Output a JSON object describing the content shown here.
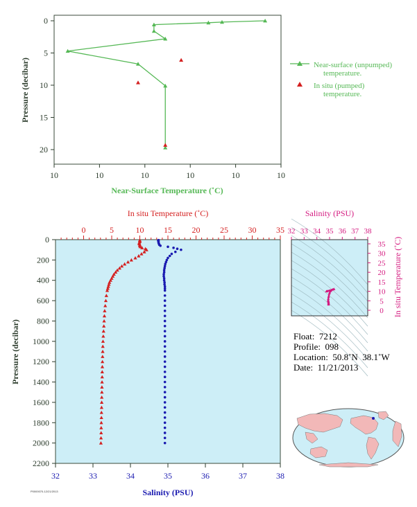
{
  "chart_data": [
    {
      "type": "line",
      "title": "",
      "xlabel": "Near-Surface Temperature (˚C)",
      "ylabel": "Pressure (decibar)",
      "x_tick_labels": [
        "10",
        "10",
        "10",
        "10",
        "10",
        "10"
      ],
      "y_tick_labels": [
        "0",
        "5",
        "10",
        "15",
        "20"
      ],
      "xlim_note": "x axis ticks all printed as 10",
      "ylim": [
        0,
        22
      ],
      "x_domain": [
        0,
        1
      ],
      "series": [
        {
          "name": "Near-surface (unpumped) temperature.",
          "marker": "triangle",
          "color": "#55b855",
          "points": [
            [
              0.93,
              0.0
            ],
            [
              0.74,
              0.2
            ],
            [
              0.68,
              0.3
            ],
            [
              0.44,
              0.6
            ],
            [
              0.44,
              1.6
            ],
            [
              0.49,
              2.8
            ],
            [
              0.06,
              4.7
            ],
            [
              0.37,
              6.7
            ],
            [
              0.49,
              10.1
            ],
            [
              0.49,
              19.7
            ]
          ]
        },
        {
          "name": "In situ (pumped) temperature.",
          "marker": "triangle",
          "color": "#d42020",
          "points": [
            [
              0.56,
              6.1
            ],
            [
              0.37,
              9.6
            ],
            [
              0.49,
              19.3
            ]
          ]
        }
      ],
      "legend_position": "right"
    },
    {
      "type": "scatter",
      "ylabel": "Pressure (decibar)",
      "ylim": [
        0,
        2200
      ],
      "y_ticks": [
        0,
        200,
        400,
        600,
        800,
        1000,
        1200,
        1400,
        1600,
        1800,
        2000,
        2200
      ],
      "temperature_axis": {
        "label": "In situ Temperature (˚C)",
        "lim": [
          -5,
          35
        ],
        "ticks": [
          0,
          5,
          10,
          15,
          20,
          25,
          30,
          35
        ],
        "color": "#d42020"
      },
      "salinity_axis": {
        "label": "Salinity (PSU)",
        "lim": [
          32,
          38
        ],
        "ticks": [
          32,
          33,
          34,
          35,
          36,
          37,
          38
        ],
        "color": "#1a1ab0"
      },
      "series": [
        {
          "name": "In situ Temperature",
          "marker": "triangle",
          "color": "#d42020",
          "pressure": [
            5,
            10,
            20,
            30,
            40,
            50,
            60,
            70,
            80,
            90,
            100,
            120,
            140,
            160,
            180,
            200,
            220,
            240,
            260,
            280,
            300,
            320,
            340,
            360,
            380,
            400,
            420,
            440,
            460,
            480,
            500,
            550,
            600,
            650,
            700,
            750,
            800,
            850,
            900,
            950,
            1000,
            1050,
            1100,
            1150,
            1200,
            1250,
            1300,
            1350,
            1400,
            1450,
            1500,
            1550,
            1600,
            1650,
            1700,
            1750,
            1800,
            1850,
            1900,
            1950,
            2000
          ],
          "values": [
            10.0,
            10.0,
            10.0,
            9.9,
            9.9,
            10.0,
            10.0,
            10.1,
            10.4,
            11.0,
            11.2,
            10.8,
            10.3,
            9.8,
            9.2,
            8.5,
            7.9,
            7.3,
            6.8,
            6.4,
            6.0,
            5.7,
            5.4,
            5.2,
            5.0,
            4.8,
            4.6,
            4.5,
            4.4,
            4.3,
            4.2,
            4.05,
            3.95,
            3.85,
            3.75,
            3.7,
            3.65,
            3.6,
            3.55,
            3.5,
            3.45,
            3.42,
            3.4,
            3.37,
            3.35,
            3.33,
            3.31,
            3.3,
            3.28,
            3.26,
            3.25,
            3.23,
            3.22,
            3.2,
            3.18,
            3.17,
            3.15,
            3.13,
            3.12,
            3.1,
            3.08
          ]
        },
        {
          "name": "Salinity",
          "marker": "circle",
          "color": "#1a1ab0",
          "pressure": [
            5,
            10,
            20,
            30,
            40,
            50,
            60,
            70,
            80,
            90,
            100,
            120,
            140,
            160,
            180,
            200,
            220,
            240,
            260,
            280,
            300,
            320,
            340,
            360,
            380,
            400,
            420,
            440,
            460,
            480,
            500,
            550,
            600,
            650,
            700,
            750,
            800,
            850,
            900,
            950,
            1000,
            1050,
            1100,
            1150,
            1200,
            1250,
            1300,
            1350,
            1400,
            1450,
            1500,
            1550,
            1600,
            1650,
            1700,
            1750,
            1800,
            1850,
            1900,
            1950,
            2000
          ],
          "values": [
            34.75,
            34.74,
            34.75,
            34.75,
            34.76,
            34.77,
            34.8,
            35.0,
            35.15,
            35.25,
            35.35,
            35.2,
            35.1,
            35.05,
            35.0,
            34.97,
            34.95,
            34.93,
            34.92,
            34.91,
            34.9,
            34.9,
            34.89,
            34.89,
            34.9,
            34.9,
            34.91,
            34.91,
            34.92,
            34.92,
            34.92,
            34.92,
            34.92,
            34.92,
            34.92,
            34.92,
            34.92,
            34.92,
            34.92,
            34.92,
            34.92,
            34.92,
            34.92,
            34.92,
            34.92,
            34.92,
            34.92,
            34.92,
            34.92,
            34.92,
            34.92,
            34.92,
            34.92,
            34.92,
            34.92,
            34.92,
            34.92,
            34.92,
            34.92,
            34.92,
            34.92
          ]
        }
      ]
    },
    {
      "type": "scatter",
      "xlabel": "Salinity (PSU)",
      "ylabel": "In situ Temperature (˚C)",
      "xlim": [
        32,
        38
      ],
      "x_ticks": [
        32,
        33,
        34,
        35,
        36,
        37,
        38
      ],
      "ylim": [
        0,
        35
      ],
      "y_ticks": [
        0,
        5,
        10,
        15,
        20,
        25,
        30,
        35
      ],
      "color": "#d4197f",
      "points": [
        [
          34.75,
          10.0
        ],
        [
          34.8,
          10.1
        ],
        [
          35.0,
          10.4
        ],
        [
          35.25,
          11.0
        ],
        [
          35.35,
          11.2
        ],
        [
          35.1,
          10.3
        ],
        [
          35.0,
          9.2
        ],
        [
          34.93,
          7.3
        ],
        [
          34.9,
          6.0
        ],
        [
          34.89,
          5.2
        ],
        [
          34.9,
          4.8
        ],
        [
          34.92,
          4.3
        ],
        [
          34.92,
          3.8
        ],
        [
          34.92,
          3.4
        ],
        [
          34.92,
          3.1
        ]
      ]
    }
  ],
  "info": {
    "float_label": "Float:",
    "float": "7212",
    "profile_label": "Profile:",
    "profile": "098",
    "location_label": "Location:",
    "location": "50.8˚N  38.1˚W",
    "date_label": "Date:",
    "date": "11/21/2013"
  },
  "footer_code": "P0000070-12/21/2013",
  "colors": {
    "near_surface": "#55b855",
    "in_situ": "#d42020",
    "salinity": "#1a1ab0",
    "ts": "#d4197f",
    "plot_bg": "#cdeef7",
    "axis_text": "#2b3b2b"
  }
}
